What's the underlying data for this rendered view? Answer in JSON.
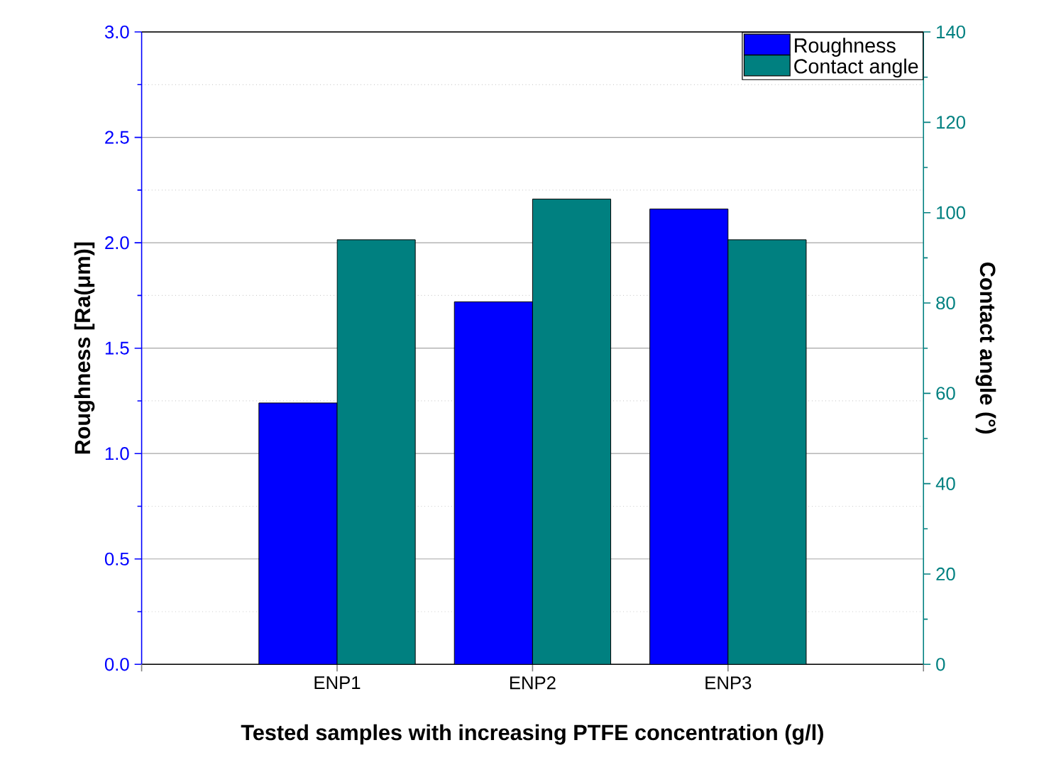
{
  "chart_data": {
    "type": "bar",
    "categories": [
      "ENP1",
      "ENP2",
      "ENP3"
    ],
    "xlabel": "Tested samples with increasing PTFE concentration (g/l)",
    "ylabel": "Roughness [Ra(μm)]",
    "y2label": "Contact angle (°)",
    "ylim": [
      0,
      3.0
    ],
    "yticks": [
      {
        "value": 0,
        "label": "0.0"
      },
      0.5,
      {
        "value": 1,
        "label": "1.0"
      },
      1.5,
      {
        "value": 2,
        "label": "2.0"
      },
      2.5,
      {
        "value": 3,
        "label": "3.0"
      }
    ],
    "y2lim": [
      0,
      140
    ],
    "y2ticks": [
      0,
      20,
      40,
      60,
      80,
      100,
      120,
      140
    ],
    "grid": "y",
    "legend": "top right",
    "series": [
      {
        "name": "Roughness",
        "color": "#0000ff",
        "values": [
          1.24,
          1.72,
          2.16
        ]
      },
      {
        "name": "Contact angle",
        "color": "#008080",
        "axis": "y2",
        "values": [
          94,
          103,
          94
        ]
      }
    ]
  }
}
